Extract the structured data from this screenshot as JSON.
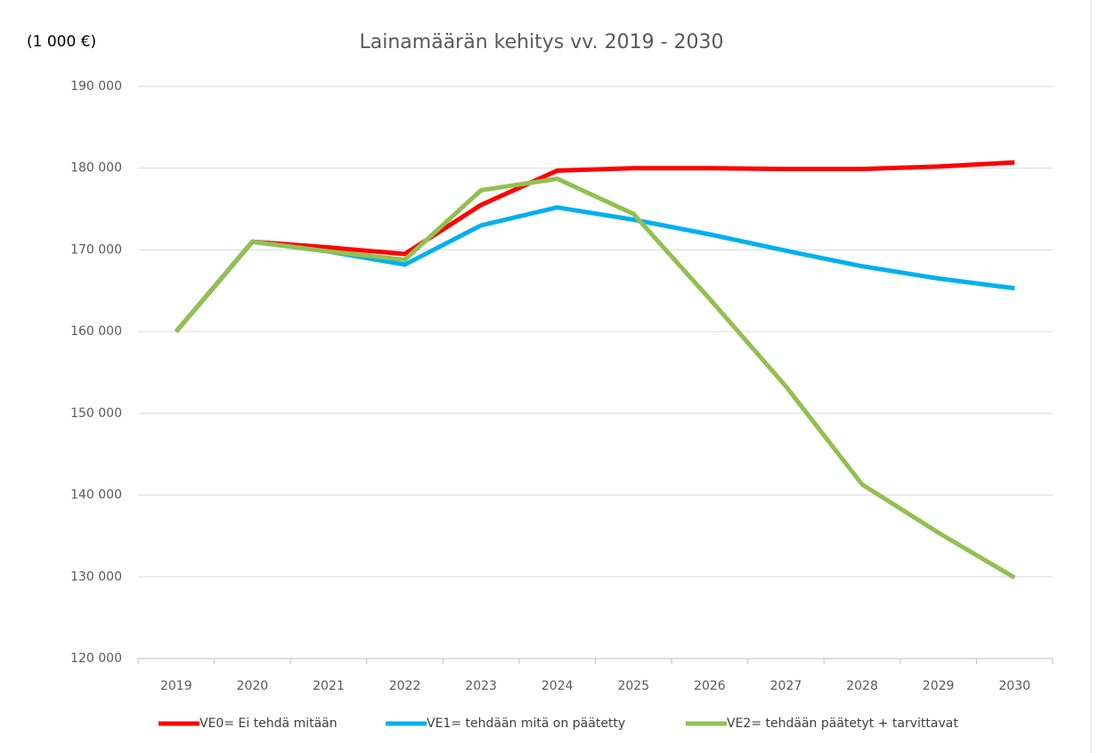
{
  "chart_data": {
    "type": "line",
    "title": "Lainamäärän kehitys vv. 2019 - 2030",
    "y_axis_label": "(1 000 €)",
    "categories": [
      "2019",
      "2020",
      "2021",
      "2022",
      "2023",
      "2024",
      "2025",
      "2026",
      "2027",
      "2028",
      "2029",
      "2030"
    ],
    "series": [
      {
        "name": "VE0= Ei tehdä mitään",
        "color": "#ff0000",
        "values": [
          160000,
          171000,
          170300,
          169500,
          175500,
          179700,
          180000,
          180000,
          179900,
          179900,
          180200,
          180700
        ]
      },
      {
        "name": "VE1= tehdään mitä on päätetty",
        "color": "#00b0f0",
        "values": [
          160000,
          171000,
          169800,
          168200,
          173000,
          175200,
          173700,
          171900,
          169900,
          168000,
          166500,
          165300
        ]
      },
      {
        "name": "VE2= tehdään päätetyt + tarvittavat",
        "color": "#92c050",
        "values": [
          160000,
          171000,
          169800,
          168800,
          177300,
          178700,
          174400,
          164000,
          153300,
          141300,
          135400,
          129900
        ]
      }
    ],
    "ylim": [
      120000,
      190000
    ],
    "yticks": [
      {
        "value": 120000,
        "label": "120 000"
      },
      {
        "value": 130000,
        "label": "130 000"
      },
      {
        "value": 140000,
        "label": "140 000"
      },
      {
        "value": 150000,
        "label": "150 000"
      },
      {
        "value": 160000,
        "label": "160 000"
      },
      {
        "value": 170000,
        "label": "170 000"
      },
      {
        "value": 180000,
        "label": "180 000"
      },
      {
        "value": 190000,
        "label": "190 000"
      }
    ],
    "grid": true,
    "legend": "bottom"
  }
}
